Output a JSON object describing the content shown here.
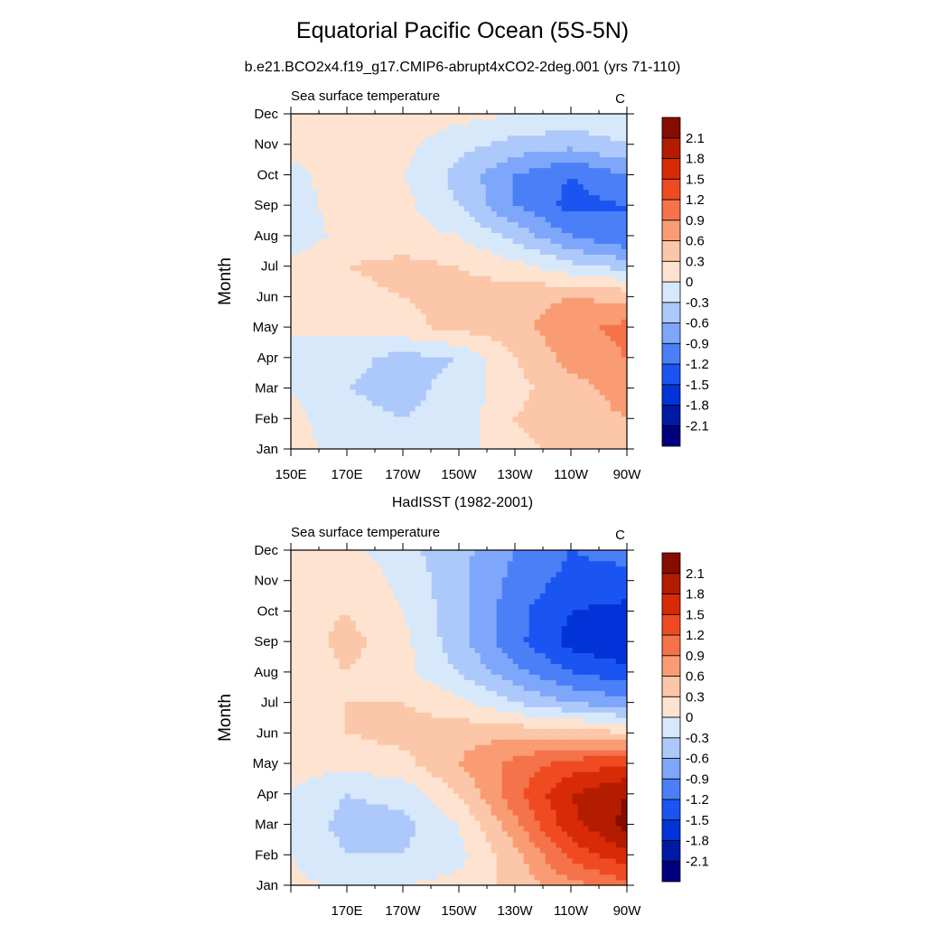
{
  "figure": {
    "title": "Equatorial Pacific Ocean (5S-5N)"
  },
  "colorbar": {
    "levels": [
      -2.1,
      -1.8,
      -1.5,
      -1.2,
      -0.9,
      -0.6,
      -0.3,
      0,
      0.3,
      0.6,
      0.9,
      1.2,
      1.5,
      1.8,
      2.1
    ],
    "labels": [
      "-2.1",
      "-1.8",
      "-1.5",
      "-1.2",
      "-0.9",
      "-0.6",
      "-0.3",
      "0",
      "0.3",
      "0.6",
      "0.9",
      "1.2",
      "1.5",
      "1.8",
      "2.1"
    ],
    "colors": [
      "#00007f",
      "#001aa6",
      "#0233d8",
      "#1a55f2",
      "#4a7ff7",
      "#7ea6fa",
      "#adc8fa",
      "#d8e8fb",
      "#fde3d0",
      "#fcc6a8",
      "#f99c74",
      "#f5734a",
      "#ef4a22",
      "#d82a06",
      "#b41c00",
      "#870c00"
    ]
  },
  "chart_data": [
    {
      "type": "heatmap",
      "title": "b.e21.BCO2x4.f19_g17.CMIP6-abrupt4xCO2-2deg.001 (yrs 71-110)",
      "left_label": "Sea surface temperature",
      "units": "C",
      "ylabel": "Month",
      "y_tick_labels": [
        "Jan",
        "Feb",
        "Mar",
        "Apr",
        "May",
        "Jun",
        "Jul",
        "Aug",
        "Sep",
        "Oct",
        "Nov",
        "Dec"
      ],
      "x_tick_labels": [
        "150E",
        "170E",
        "170W",
        "150W",
        "130W",
        "110W",
        "90W"
      ],
      "x": [
        150,
        170,
        190,
        210,
        230,
        250,
        270
      ],
      "months": [
        1,
        2,
        3,
        4,
        5,
        6,
        7,
        8,
        9,
        10,
        11,
        12
      ],
      "xlim": [
        150,
        270
      ],
      "ylim": [
        1,
        12
      ],
      "values": [
        [
          0.1,
          -0.1,
          -0.2,
          -0.1,
          0.2,
          0.4,
          0.5
        ],
        [
          0.1,
          -0.2,
          -0.3,
          -0.2,
          0.3,
          0.5,
          0.6
        ],
        [
          0.0,
          -0.3,
          -0.4,
          -0.2,
          0.2,
          0.5,
          0.7
        ],
        [
          0.0,
          -0.2,
          -0.4,
          -0.3,
          0.3,
          0.7,
          0.9
        ],
        [
          0.0,
          0.1,
          0.2,
          0.4,
          0.5,
          0.8,
          1.0
        ],
        [
          0.1,
          0.2,
          0.3,
          0.4,
          0.5,
          0.6,
          0.5
        ],
        [
          0.1,
          0.3,
          0.4,
          0.3,
          0.1,
          -0.2,
          -0.4
        ],
        [
          -0.2,
          0.1,
          0.1,
          0.0,
          -0.4,
          -0.9,
          -1.2
        ],
        [
          -0.2,
          0.2,
          0.1,
          -0.3,
          -0.9,
          -1.3,
          -1.2
        ],
        [
          -0.1,
          0.2,
          0.0,
          -0.4,
          -0.9,
          -1.2,
          -0.9
        ],
        [
          0.1,
          0.2,
          0.1,
          -0.2,
          -0.4,
          -0.5,
          -0.3
        ],
        [
          0.2,
          0.2,
          0.2,
          0.1,
          0.0,
          -0.1,
          0.0
        ]
      ]
    },
    {
      "type": "heatmap",
      "title": "HadISST (1982-2001)",
      "left_label": "Sea surface temperature",
      "units": "C",
      "ylabel": "Month",
      "y_tick_labels": [
        "Jan",
        "Feb",
        "Mar",
        "Apr",
        "May",
        "Jun",
        "Jul",
        "Aug",
        "Sep",
        "Oct",
        "Nov",
        "Dec"
      ],
      "x_tick_labels": [
        "170E",
        "170W",
        "150W",
        "130W",
        "110W",
        "90W"
      ],
      "x": [
        150,
        170,
        190,
        210,
        230,
        250,
        270
      ],
      "months": [
        1,
        2,
        3,
        4,
        5,
        6,
        7,
        8,
        9,
        10,
        11,
        12
      ],
      "xlim": [
        150,
        270
      ],
      "ylim": [
        1,
        12
      ],
      "values": [
        [
          0.1,
          -0.1,
          0.0,
          0.1,
          0.4,
          0.8,
          1.1
        ],
        [
          0.0,
          -0.3,
          -0.3,
          -0.1,
          0.5,
          1.3,
          1.7
        ],
        [
          -0.1,
          -0.4,
          -0.4,
          0.0,
          0.8,
          1.7,
          2.2
        ],
        [
          0.0,
          -0.3,
          -0.2,
          0.3,
          1.1,
          1.8,
          2.1
        ],
        [
          0.1,
          0.1,
          0.2,
          0.6,
          1.0,
          1.3,
          1.5
        ],
        [
          0.2,
          0.3,
          0.4,
          0.5,
          0.5,
          0.5,
          0.3
        ],
        [
          0.2,
          0.3,
          0.3,
          0.1,
          -0.3,
          -0.6,
          -0.8
        ],
        [
          0.1,
          0.3,
          0.1,
          -0.3,
          -0.8,
          -1.2,
          -1.4
        ],
        [
          0.1,
          0.4,
          0.1,
          -0.5,
          -1.1,
          -1.6,
          -1.8
        ],
        [
          0.2,
          0.3,
          0.0,
          -0.5,
          -1.1,
          -1.5,
          -1.6
        ],
        [
          0.3,
          0.3,
          -0.1,
          -0.5,
          -1.0,
          -1.3,
          -1.3
        ],
        [
          0.3,
          0.1,
          -0.2,
          -0.5,
          -0.9,
          -1.2,
          -1.1
        ]
      ]
    }
  ]
}
